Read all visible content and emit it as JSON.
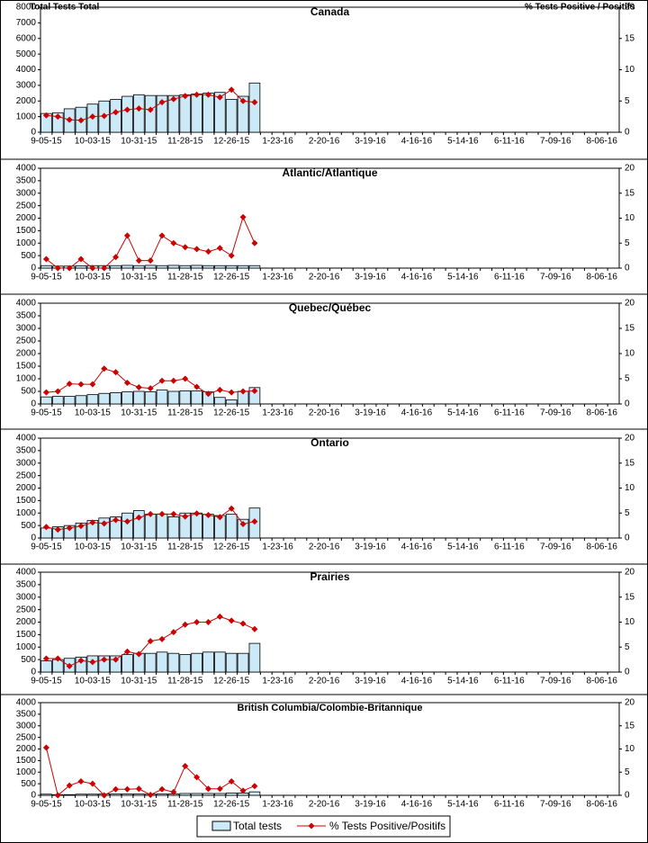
{
  "chart_data": [
    {
      "type": "bar-line",
      "title": "Canada",
      "ylabel": "Total Tests Total",
      "y2label": "% Tests Positive / Positifs",
      "categories": [
        "9-05-15",
        null,
        null,
        null,
        "10-03-15",
        null,
        null,
        null,
        "10-31-15",
        null,
        null,
        null,
        "11-28-15",
        null,
        null,
        null,
        "12-26-15",
        null,
        null,
        null,
        "1-23-16",
        null,
        null,
        null,
        "2-20-16",
        null,
        null,
        null,
        "3-19-16",
        null,
        null,
        null,
        "4-16-16",
        null,
        null,
        null,
        "5-14-16",
        null,
        null,
        null,
        "6-11-16",
        null,
        null,
        null,
        "7-09-16",
        null,
        null,
        null,
        "8-06-16",
        null
      ],
      "ylim": [
        0,
        8000
      ],
      "yticks": [
        0,
        1000,
        2000,
        3000,
        4000,
        5000,
        6000,
        7000,
        8000
      ],
      "y2lim": [
        0,
        20
      ],
      "y2ticks": [
        0,
        5,
        10,
        15,
        20
      ],
      "series": [
        {
          "name": "Total tests",
          "kind": "bar",
          "color": "#cce9f8",
          "values": [
            1200,
            1250,
            1500,
            1600,
            1800,
            2000,
            2100,
            2300,
            2400,
            2350,
            2350,
            2350,
            2400,
            2450,
            2500,
            2550,
            2100,
            2300,
            3150,
            null,
            null,
            null,
            null,
            null,
            null,
            null,
            null,
            null,
            null,
            null,
            null,
            null,
            null,
            null,
            null,
            null,
            null,
            null,
            null,
            null,
            null,
            null,
            null,
            null,
            null,
            null,
            null,
            null,
            null,
            null
          ]
        },
        {
          "name": "% Tests Positive/Positifs",
          "kind": "line",
          "axis": "y2",
          "color": "#cc0000",
          "values": [
            2.7,
            2.5,
            2.0,
            1.9,
            2.5,
            2.6,
            3.2,
            3.6,
            3.8,
            3.6,
            4.8,
            5.3,
            5.8,
            6.0,
            6.0,
            5.6,
            6.8,
            5.0,
            4.8,
            null,
            null,
            null,
            null,
            null,
            null,
            null,
            null,
            null,
            null,
            null,
            null,
            null,
            null,
            null,
            null,
            null,
            null,
            null,
            null,
            null,
            null,
            null,
            null,
            null,
            null,
            null,
            null,
            null,
            null,
            null
          ]
        }
      ]
    },
    {
      "type": "bar-line",
      "title": "Atlantic/Atlantique",
      "categories": [
        "9-05-15",
        null,
        null,
        null,
        "10-03-15",
        null,
        null,
        null,
        "10-31-15",
        null,
        null,
        null,
        "11-28-15",
        null,
        null,
        null,
        "12-26-15",
        null,
        null,
        null,
        "1-23-16",
        null,
        null,
        null,
        "2-20-16",
        null,
        null,
        null,
        "3-19-16",
        null,
        null,
        null,
        "4-16-16",
        null,
        null,
        null,
        "5-14-16",
        null,
        null,
        null,
        "6-11-16",
        null,
        null,
        null,
        "7-09-16",
        null,
        null,
        null,
        "8-06-16",
        null
      ],
      "ylim": [
        0,
        4000
      ],
      "yticks": [
        0,
        500,
        1000,
        1500,
        2000,
        2500,
        3000,
        3500,
        4000
      ],
      "y2lim": [
        0,
        20
      ],
      "y2ticks": [
        0,
        5,
        10,
        15,
        20
      ],
      "series": [
        {
          "kind": "bar",
          "color": "#cce9f8",
          "values": [
            100,
            80,
            80,
            90,
            100,
            100,
            100,
            110,
            100,
            110,
            100,
            110,
            100,
            110,
            100,
            100,
            100,
            100,
            100,
            null,
            null,
            null,
            null,
            null,
            null,
            null,
            null,
            null,
            null,
            null,
            null,
            null,
            null,
            null,
            null,
            null,
            null,
            null,
            null,
            null,
            null,
            null,
            null,
            null,
            null,
            null,
            null,
            null,
            null,
            null
          ]
        },
        {
          "kind": "line",
          "axis": "y2",
          "color": "#cc0000",
          "values": [
            1.8,
            0,
            0,
            1.8,
            0,
            0,
            2.2,
            6.5,
            1.5,
            1.5,
            6.5,
            5,
            4.2,
            3.8,
            3.3,
            4,
            2.5,
            10.2,
            5,
            null,
            null,
            null,
            null,
            null,
            null,
            null,
            null,
            null,
            null,
            null,
            null,
            null,
            null,
            null,
            null,
            null,
            null,
            null,
            null,
            null,
            null,
            null,
            null,
            null,
            null,
            null,
            null,
            null,
            null,
            null
          ]
        }
      ]
    },
    {
      "type": "bar-line",
      "title": "Quebec/Québec",
      "categories": [
        "9-05-15",
        null,
        null,
        null,
        "10-03-15",
        null,
        null,
        null,
        "10-31-15",
        null,
        null,
        null,
        "11-28-15",
        null,
        null,
        null,
        "12-26-15",
        null,
        null,
        null,
        "1-23-16",
        null,
        null,
        null,
        "2-20-16",
        null,
        null,
        null,
        "3-19-16",
        null,
        null,
        null,
        "4-16-16",
        null,
        null,
        null,
        "5-14-16",
        null,
        null,
        null,
        "6-11-16",
        null,
        null,
        null,
        "7-09-16",
        null,
        null,
        null,
        "8-06-16",
        null
      ],
      "ylim": [
        0,
        4000
      ],
      "yticks": [
        0,
        500,
        1000,
        1500,
        2000,
        2500,
        3000,
        3500,
        4000
      ],
      "y2lim": [
        0,
        20
      ],
      "y2ticks": [
        0,
        5,
        10,
        15,
        20
      ],
      "series": [
        {
          "kind": "bar",
          "color": "#cce9f8",
          "values": [
            280,
            300,
            300,
            330,
            370,
            420,
            450,
            480,
            500,
            480,
            560,
            500,
            520,
            520,
            480,
            260,
            160,
            500,
            650,
            null,
            null,
            null,
            null,
            null,
            null,
            null,
            null,
            null,
            null,
            null,
            null,
            null,
            null,
            null,
            null,
            null,
            null,
            null,
            null,
            null,
            null,
            null,
            null,
            null,
            null,
            null,
            null,
            null,
            null,
            null
          ]
        },
        {
          "kind": "line",
          "axis": "y2",
          "color": "#cc0000",
          "values": [
            2.3,
            2.5,
            4,
            3.9,
            3.9,
            7,
            6.3,
            4.2,
            3.3,
            3.1,
            4.6,
            4.6,
            5,
            3.4,
            2,
            2.8,
            2.3,
            2.5,
            2.6,
            null,
            null,
            null,
            null,
            null,
            null,
            null,
            null,
            null,
            null,
            null,
            null,
            null,
            null,
            null,
            null,
            null,
            null,
            null,
            null,
            null,
            null,
            null,
            null,
            null,
            null,
            null,
            null,
            null,
            null,
            null
          ]
        }
      ]
    },
    {
      "type": "bar-line",
      "title": "Ontario",
      "categories": [
        "9-05-15",
        null,
        null,
        null,
        "10-03-15",
        null,
        null,
        null,
        "10-31-15",
        null,
        null,
        null,
        "11-28-15",
        null,
        null,
        null,
        "12-26-15",
        null,
        null,
        null,
        "1-23-16",
        null,
        null,
        null,
        "2-20-16",
        null,
        null,
        null,
        "3-19-16",
        null,
        null,
        null,
        "4-16-16",
        null,
        null,
        null,
        "5-14-16",
        null,
        null,
        null,
        "6-11-16",
        null,
        null,
        null,
        "7-09-16",
        null,
        null,
        null,
        "8-06-16",
        null
      ],
      "ylim": [
        0,
        4000
      ],
      "yticks": [
        0,
        500,
        1000,
        1500,
        2000,
        2500,
        3000,
        3500,
        4000
      ],
      "y2lim": [
        0,
        20
      ],
      "y2ticks": [
        0,
        5,
        10,
        15,
        20
      ],
      "series": [
        {
          "kind": "bar",
          "color": "#cce9f8",
          "values": [
            400,
            450,
            500,
            600,
            700,
            800,
            850,
            1000,
            1100,
            950,
            950,
            850,
            1000,
            1000,
            950,
            900,
            950,
            750,
            1200,
            null,
            null,
            null,
            null,
            null,
            null,
            null,
            null,
            null,
            null,
            null,
            null,
            null,
            null,
            null,
            null,
            null,
            null,
            null,
            null,
            null,
            null,
            null,
            null,
            null,
            null,
            null,
            null,
            null,
            null,
            null
          ]
        },
        {
          "kind": "line",
          "axis": "y2",
          "color": "#cc0000",
          "values": [
            2.2,
            1.7,
            2,
            2.4,
            3.1,
            2.9,
            3.6,
            3.3,
            4.1,
            4.8,
            4.8,
            4.8,
            4.3,
            4.9,
            4.6,
            4.2,
            5.9,
            2.8,
            3.3,
            null,
            null,
            null,
            null,
            null,
            null,
            null,
            null,
            null,
            null,
            null,
            null,
            null,
            null,
            null,
            null,
            null,
            null,
            null,
            null,
            null,
            null,
            null,
            null,
            null,
            null,
            null,
            null,
            null,
            null,
            null
          ]
        }
      ]
    },
    {
      "type": "bar-line",
      "title": "Prairies",
      "categories": [
        "9-05-15",
        null,
        null,
        null,
        "10-03-15",
        null,
        null,
        null,
        "10-31-15",
        null,
        null,
        null,
        "11-28-15",
        null,
        null,
        null,
        "12-26-15",
        null,
        null,
        null,
        "1-23-16",
        null,
        null,
        null,
        "2-20-16",
        null,
        null,
        null,
        "3-19-16",
        null,
        null,
        null,
        "4-16-16",
        null,
        null,
        null,
        "5-14-16",
        null,
        null,
        null,
        "6-11-16",
        null,
        null,
        null,
        "7-09-16",
        null,
        null,
        null,
        "8-06-16",
        null
      ],
      "ylim": [
        0,
        4000
      ],
      "yticks": [
        0,
        500,
        1000,
        1500,
        2000,
        2500,
        3000,
        3500,
        4000
      ],
      "y2lim": [
        0,
        20
      ],
      "y2ticks": [
        0,
        5,
        10,
        15,
        20
      ],
      "series": [
        {
          "kind": "bar",
          "color": "#cce9f8",
          "values": [
            450,
            500,
            550,
            600,
            650,
            650,
            650,
            700,
            750,
            750,
            800,
            750,
            700,
            750,
            800,
            800,
            750,
            750,
            1150,
            null,
            null,
            null,
            null,
            null,
            null,
            null,
            null,
            null,
            null,
            null,
            null,
            null,
            null,
            null,
            null,
            null,
            null,
            null,
            null,
            null,
            null,
            null,
            null,
            null,
            null,
            null,
            null,
            null,
            null,
            null
          ]
        },
        {
          "kind": "line",
          "axis": "y2",
          "color": "#cc0000",
          "values": [
            2.7,
            2.7,
            1.2,
            2.3,
            2,
            2.5,
            2.5,
            4.1,
            3.6,
            6.2,
            6.6,
            8,
            9.5,
            10,
            10,
            11.1,
            10.3,
            9.7,
            8.6,
            null,
            null,
            null,
            null,
            null,
            null,
            null,
            null,
            null,
            null,
            null,
            null,
            null,
            null,
            null,
            null,
            null,
            null,
            null,
            null,
            null,
            null,
            null,
            null,
            null,
            null,
            null,
            null,
            null,
            null,
            null
          ]
        }
      ]
    },
    {
      "type": "bar-line",
      "title": "British Columbia/Colombie-Britannique",
      "categories": [
        "9-05-15",
        null,
        null,
        null,
        "10-03-15",
        null,
        null,
        null,
        "10-31-15",
        null,
        null,
        null,
        "11-28-15",
        null,
        null,
        null,
        "12-26-15",
        null,
        null,
        null,
        "1-23-16",
        null,
        null,
        null,
        "2-20-16",
        null,
        null,
        null,
        "3-19-16",
        null,
        null,
        null,
        "4-16-16",
        null,
        null,
        null,
        "5-14-16",
        null,
        null,
        null,
        "6-11-16",
        null,
        null,
        null,
        "7-09-16",
        null,
        null,
        null,
        "8-06-16",
        null
      ],
      "ylim": [
        0,
        4000
      ],
      "yticks": [
        0,
        500,
        1000,
        1500,
        2000,
        2500,
        3000,
        3500,
        4000
      ],
      "y2lim": [
        0,
        20
      ],
      "y2ticks": [
        0,
        5,
        10,
        15,
        20
      ],
      "series": [
        {
          "kind": "bar",
          "color": "#cce9f8",
          "values": [
            50,
            30,
            30,
            50,
            50,
            60,
            60,
            60,
            60,
            50,
            60,
            60,
            80,
            80,
            80,
            80,
            100,
            100,
            150,
            null,
            null,
            null,
            null,
            null,
            null,
            null,
            null,
            null,
            null,
            null,
            null,
            null,
            null,
            null,
            null,
            null,
            null,
            null,
            null,
            null,
            null,
            null,
            null,
            null,
            null,
            null,
            null,
            null,
            null,
            null
          ]
        },
        {
          "kind": "line",
          "axis": "y2",
          "color": "#cc0000",
          "values": [
            10.3,
            0,
            2.1,
            3,
            2.5,
            0,
            1.3,
            1.3,
            1.4,
            0.1,
            1.3,
            0.7,
            6.3,
            3.9,
            1.4,
            1.4,
            3,
            1,
            2,
            null,
            null,
            null,
            null,
            null,
            null,
            null,
            null,
            null,
            null,
            null,
            null,
            null,
            null,
            null,
            null,
            null,
            null,
            null,
            null,
            null,
            null,
            null,
            null,
            null,
            null,
            null,
            null,
            null,
            null,
            null
          ]
        }
      ]
    }
  ]
}
